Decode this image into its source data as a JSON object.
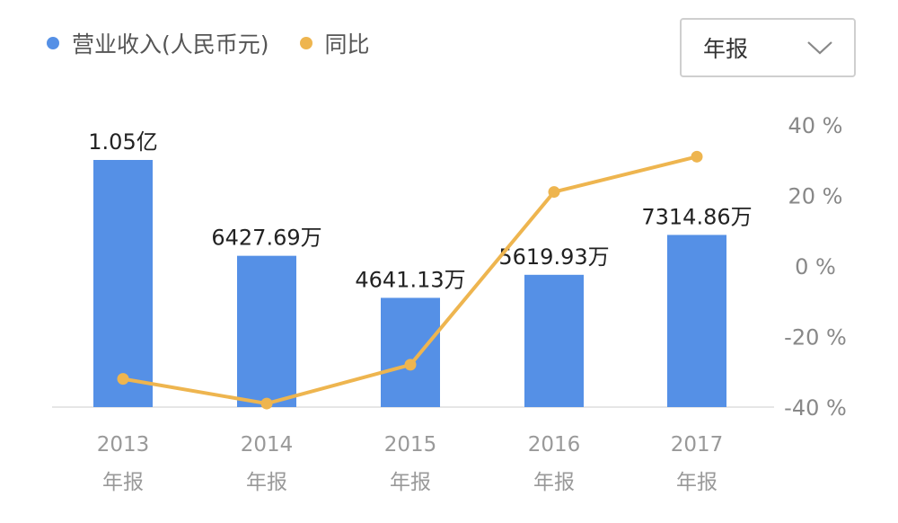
{
  "legend": [
    {
      "label": "营业收入(人民币元)",
      "color": "#5590e6"
    },
    {
      "label": "同比",
      "color": "#eeb54f"
    }
  ],
  "report_select": {
    "value": "年报",
    "icon": "chevron-down-icon"
  },
  "chart_data": {
    "type": "bar+line",
    "categories": [
      "2013",
      "2014",
      "2015",
      "2016",
      "2017"
    ],
    "category_sublabels": [
      "年报",
      "年报",
      "年报",
      "年报",
      "年报"
    ],
    "series": [
      {
        "name": "营业收入(人民币元)",
        "type": "bar",
        "axis": "left",
        "color": "#5590e6",
        "values": [
          105000000,
          64276900,
          46411300,
          56199300,
          73148600
        ],
        "labels": [
          "1.05亿",
          "6427.69万",
          "4641.13万",
          "5619.93万",
          "7314.86万"
        ]
      },
      {
        "name": "同比",
        "type": "line",
        "axis": "right",
        "color": "#eeb54f",
        "values": [
          -32,
          -39,
          -28,
          21,
          31
        ],
        "unit": "%"
      }
    ],
    "y_left": {
      "min": 0,
      "max": 105000000
    },
    "y_right": {
      "min": -40,
      "max": 40,
      "ticks": [
        "40 %",
        "20 %",
        "0 %",
        "-20 %",
        "-40 %"
      ],
      "tick_values": [
        40,
        20,
        0,
        -20,
        -40
      ]
    },
    "grid": false,
    "legend_position": "top-left"
  }
}
